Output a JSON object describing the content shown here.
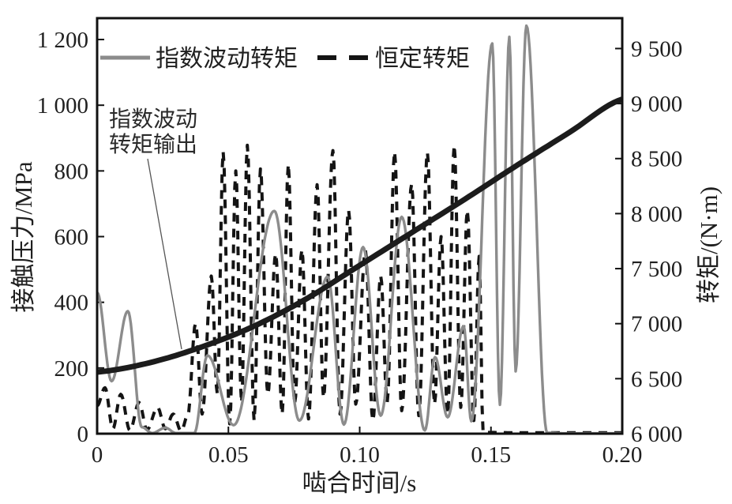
{
  "figure": {
    "background": "#ffffff",
    "axis_color": "#111111",
    "text_color": "#1f1f1f"
  },
  "chart_data": {
    "type": "line",
    "title": "",
    "xlabel": "啮合时间/s",
    "ylabel_left": "接触压力/MPa",
    "ylabel_right": "转矩/(N·m)",
    "xlim": [
      0,
      0.2
    ],
    "xticks": [
      0,
      0.05,
      0.1,
      0.15,
      0.2
    ],
    "xtick_labels": [
      "0",
      "0.05",
      "0.10",
      "0.15",
      "0.20"
    ],
    "ylim_left": [
      0,
      1265
    ],
    "yticks_left": [
      0,
      200,
      400,
      600,
      800,
      1000,
      1200
    ],
    "ytick_labels_left": [
      "0",
      "200",
      "400",
      "600",
      "800",
      "1 000",
      "1 200"
    ],
    "ylim_right": [
      6000,
      9776
    ],
    "yticks_right": [
      6000,
      6500,
      7000,
      7500,
      8000,
      8500,
      9000,
      9500
    ],
    "ytick_labels_right": [
      "6 000",
      "6 500",
      "7 000",
      "7 500",
      "8 000",
      "8 500",
      "9 000",
      "9 500"
    ],
    "grid": false,
    "legend": {
      "position": "top-inside",
      "entries": [
        {
          "label": "指数波动转矩",
          "swatch": "solid-gray",
          "color": "#8c8c8c"
        },
        {
          "label": "恒定转矩",
          "swatch": "dashed-black",
          "color": "#141414"
        }
      ]
    },
    "annotation": {
      "lines": [
        "指数波动",
        "转矩输出"
      ],
      "target_series": "指数波动转矩输出",
      "target_t": 0.032
    },
    "series": [
      {
        "name": "恒定转矩",
        "axis": "left",
        "units": "MPa",
        "color": "#141414",
        "style": "dashed",
        "width": 4,
        "interp": "cosine",
        "points": [
          [
            0,
            85
          ],
          [
            0.003,
            140
          ],
          [
            0.006,
            15
          ],
          [
            0.009,
            120
          ],
          [
            0.0125,
            10
          ],
          [
            0.016,
            95
          ],
          [
            0.019,
            12
          ],
          [
            0.023,
            80
          ],
          [
            0.026,
            15
          ],
          [
            0.029,
            60
          ],
          [
            0.032,
            8
          ],
          [
            0.0345,
            55
          ],
          [
            0.0375,
            335
          ],
          [
            0.04,
            60
          ],
          [
            0.0435,
            480
          ],
          [
            0.0458,
            120
          ],
          [
            0.048,
            858
          ],
          [
            0.0505,
            30
          ],
          [
            0.0528,
            800
          ],
          [
            0.055,
            95
          ],
          [
            0.0572,
            878
          ],
          [
            0.0598,
            40
          ],
          [
            0.0622,
            806
          ],
          [
            0.065,
            120
          ],
          [
            0.068,
            548
          ],
          [
            0.0705,
            60
          ],
          [
            0.0728,
            820
          ],
          [
            0.0752,
            90
          ],
          [
            0.078,
            560
          ],
          [
            0.0805,
            45
          ],
          [
            0.0838,
            758
          ],
          [
            0.0862,
            110
          ],
          [
            0.0898,
            862
          ],
          [
            0.0925,
            60
          ],
          [
            0.0958,
            680
          ],
          [
            0.0985,
            90
          ],
          [
            0.1022,
            558
          ],
          [
            0.105,
            40
          ],
          [
            0.108,
            480
          ],
          [
            0.1105,
            95
          ],
          [
            0.1133,
            858
          ],
          [
            0.116,
            70
          ],
          [
            0.1198,
            760
          ],
          [
            0.1225,
            55
          ],
          [
            0.1258,
            856
          ],
          [
            0.1285,
            90
          ],
          [
            0.131,
            600
          ],
          [
            0.1335,
            60
          ],
          [
            0.136,
            878
          ],
          [
            0.1385,
            80
          ],
          [
            0.141,
            680
          ],
          [
            0.1435,
            40
          ],
          [
            0.1455,
            540
          ],
          [
            0.147,
            4
          ],
          [
            0.16,
            3
          ],
          [
            0.2,
            3
          ]
        ]
      },
      {
        "name": "指数波动转矩",
        "axis": "left",
        "units": "MPa",
        "color": "#8c8c8c",
        "style": "solid",
        "width": 3.4,
        "interp": "cosine",
        "points": [
          [
            0,
            430
          ],
          [
            0.0055,
            160
          ],
          [
            0.0117,
            373
          ],
          [
            0.017,
            20
          ],
          [
            0.021,
            2
          ],
          [
            0.026,
            18
          ],
          [
            0.03,
            2
          ],
          [
            0.037,
            2
          ],
          [
            0.042,
            238
          ],
          [
            0.052,
            26
          ],
          [
            0.0675,
            678
          ],
          [
            0.077,
            40
          ],
          [
            0.0878,
            478
          ],
          [
            0.094,
            28
          ],
          [
            0.1013,
            568
          ],
          [
            0.108,
            55
          ],
          [
            0.116,
            660
          ],
          [
            0.1248,
            10
          ],
          [
            0.1287,
            233
          ],
          [
            0.1335,
            50
          ],
          [
            0.1396,
            327
          ],
          [
            0.1425,
            38
          ],
          [
            0.1505,
            1188
          ],
          [
            0.1534,
            88
          ],
          [
            0.157,
            1208
          ],
          [
            0.1594,
            190
          ],
          [
            0.1635,
            1242
          ],
          [
            0.1714,
            3
          ],
          [
            0.178,
            1
          ],
          [
            0.2,
            1
          ]
        ]
      },
      {
        "name": "指数波动转矩输出",
        "axis": "right",
        "units": "N·m",
        "color": "#1c1c1c",
        "style": "solid",
        "width": 7,
        "interp": "catmull",
        "points": [
          [
            0,
            6560
          ],
          [
            0.02,
            6645
          ],
          [
            0.04,
            6790
          ],
          [
            0.06,
            6980
          ],
          [
            0.08,
            7230
          ],
          [
            0.1,
            7530
          ],
          [
            0.12,
            7830
          ],
          [
            0.14,
            8130
          ],
          [
            0.16,
            8440
          ],
          [
            0.18,
            8740
          ],
          [
            0.2,
            9040
          ]
        ]
      }
    ]
  }
}
